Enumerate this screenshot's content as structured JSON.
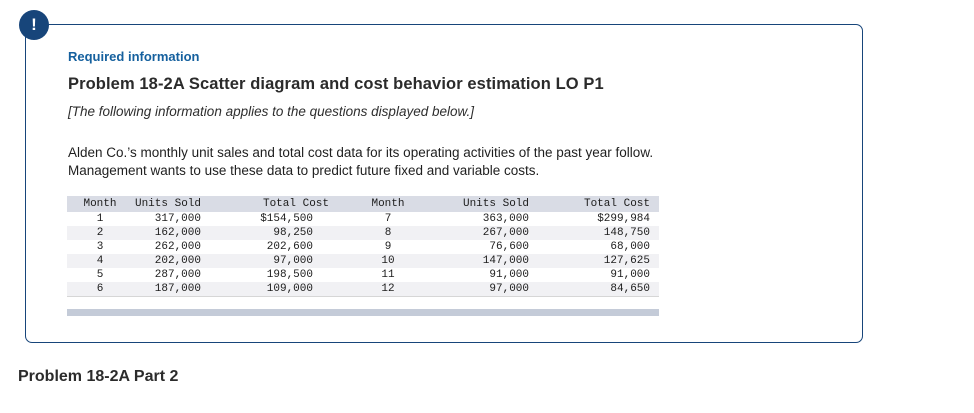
{
  "alert": {
    "glyph": "!"
  },
  "card": {
    "required_label": "Required information",
    "title": "Problem 18-2A Scatter diagram and cost behavior estimation LO P1",
    "applies_note": "[The following information applies to the questions displayed below.]",
    "description_lines": [
      "Alden Co.’s monthly unit sales and total cost data for its operating activities of the past year follow.",
      "Management wants to use these data to predict future fixed and variable costs."
    ],
    "table": {
      "headers": [
        "Month",
        "Units Sold",
        "Total Cost",
        "Month",
        "Units Sold",
        "Total Cost"
      ],
      "rows": [
        [
          "1",
          "317,000",
          "$154,500",
          "7",
          "363,000",
          "$299,984"
        ],
        [
          "2",
          "162,000",
          "98,250",
          "8",
          "267,000",
          "148,750"
        ],
        [
          "3",
          "262,000",
          "202,600",
          "9",
          "76,600",
          "68,000"
        ],
        [
          "4",
          "202,000",
          "97,000",
          "10",
          "147,000",
          "127,625"
        ],
        [
          "5",
          "287,000",
          "198,500",
          "11",
          "91,000",
          "91,000"
        ],
        [
          "6",
          "187,000",
          "109,000",
          "12",
          "97,000",
          "84,650"
        ]
      ]
    }
  },
  "footer_heading": "Problem 18-2A Part 2",
  "colors": {
    "navy": "#17457a",
    "required_blue": "#15609e",
    "table_header_bg": "#d9dce5",
    "alt_row_bg": "#f1f1f4",
    "scrollbar_bg": "#c4cbd8"
  }
}
